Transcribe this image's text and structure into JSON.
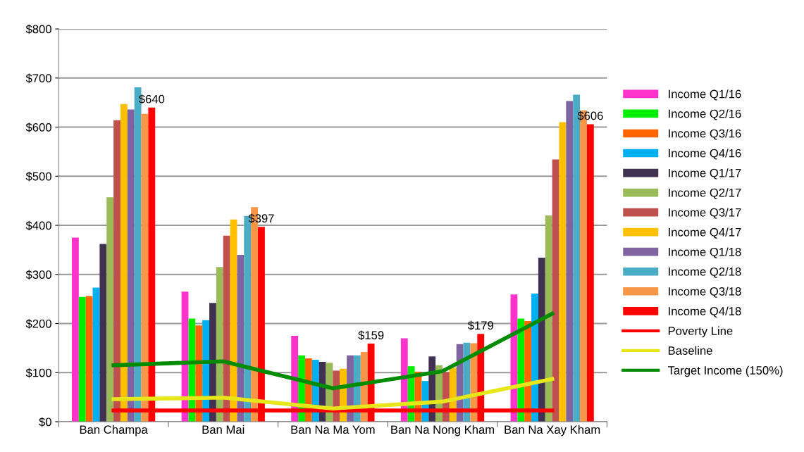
{
  "chart_data": {
    "type": "bar",
    "categories": [
      "Ban Champa",
      "Ban Mai",
      "Ban Na Ma Yom",
      "Ban Na Nong Kham",
      "Ban Na Xay Kham"
    ],
    "ylim": [
      0,
      800
    ],
    "yticks": [
      {
        "value": 0,
        "label": "$0"
      },
      {
        "value": 100,
        "label": "$100"
      },
      {
        "value": 200,
        "label": "$200"
      },
      {
        "value": 300,
        "label": "$300"
      },
      {
        "value": 400,
        "label": "$400"
      },
      {
        "value": 500,
        "label": "$500"
      },
      {
        "value": 600,
        "label": "$600"
      },
      {
        "value": 700,
        "label": "$700"
      },
      {
        "value": 800,
        "label": "$800"
      }
    ],
    "grid": "y",
    "legend": "right",
    "series": [
      {
        "name": "Income Q1/16",
        "color": "#ff33cc",
        "values": [
          375,
          265,
          175,
          170,
          259
        ]
      },
      {
        "name": "Income Q2/16",
        "color": "#00ee00",
        "values": [
          254,
          210,
          135,
          113,
          210
        ]
      },
      {
        "name": "Income Q3/16",
        "color": "#ff6600",
        "values": [
          256,
          196,
          129,
          102,
          205
        ]
      },
      {
        "name": "Income Q4/16",
        "color": "#00b0f0",
        "values": [
          273,
          207,
          126,
          83,
          261
        ]
      },
      {
        "name": "Income Q1/17",
        "color": "#403151",
        "values": [
          362,
          242,
          122,
          133,
          334
        ]
      },
      {
        "name": "Income Q2/17",
        "color": "#9bbb59",
        "values": [
          457,
          315,
          120,
          115,
          420
        ]
      },
      {
        "name": "Income Q3/17",
        "color": "#c0504d",
        "values": [
          614,
          379,
          104,
          101,
          534
        ]
      },
      {
        "name": "Income Q4/17",
        "color": "#ffc000",
        "values": [
          647,
          412,
          108,
          110,
          610
        ]
      },
      {
        "name": "Income Q1/18",
        "color": "#8064a2",
        "values": [
          636,
          340,
          135,
          158,
          653
        ]
      },
      {
        "name": "Income Q2/18",
        "color": "#4bacc6",
        "values": [
          681,
          419,
          135,
          161,
          666
        ]
      },
      {
        "name": "Income Q3/18",
        "color": "#f79646",
        "values": [
          627,
          437,
          142,
          160,
          634
        ]
      },
      {
        "name": "Income Q4/18",
        "color": "#ff0000",
        "values": [
          640,
          397,
          159,
          179,
          606
        ],
        "value_labels": [
          "$640",
          "$397",
          "$159",
          "$179",
          "$606"
        ]
      },
      {
        "name": "Poverty Line",
        "type": "line",
        "color": "#ff0000",
        "values": [
          23,
          23,
          23,
          23,
          23
        ]
      },
      {
        "name": "Baseline",
        "type": "line",
        "color": "#e6e619",
        "values": [
          46,
          49,
          27,
          41,
          87
        ]
      },
      {
        "name": "Target Income (150%)",
        "type": "line",
        "color": "#008c00",
        "values": [
          115,
          123,
          68,
          103,
          220
        ]
      }
    ]
  }
}
